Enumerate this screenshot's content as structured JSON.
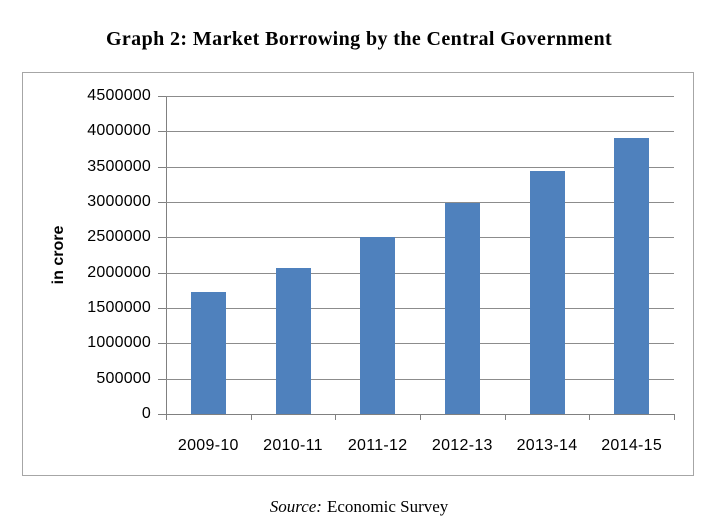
{
  "figure": {
    "title": "Graph 2: Market Borrowing by the Central Government",
    "source_prefix": "Source:",
    "source_text": "Economic Survey"
  },
  "chart_data": {
    "type": "bar",
    "title": "Graph 2: Market Borrowing by the Central Government",
    "categories": [
      "2009-10",
      "2010-11",
      "2011-12",
      "2012-13",
      "2013-14",
      "2014-15"
    ],
    "values": [
      1730000,
      2060000,
      2510000,
      2980000,
      3440000,
      3910000
    ],
    "xlabel": "",
    "ylabel": "in crore",
    "ylim": [
      0,
      4500000
    ],
    "ytick_interval": 500000,
    "ytick_labels": [
      "0",
      "500000",
      "1000000",
      "1500000",
      "2000000",
      "2500000",
      "3000000",
      "3500000",
      "4000000",
      "4500000"
    ],
    "grid": true,
    "legend": "none",
    "source": "Source: Economic Survey"
  },
  "colors": {
    "bar": "#4F81BD",
    "gridline": "#8C8C8C",
    "axis": "#808080",
    "chart_border": "#A6A6A6",
    "text": "#000000",
    "background": "#FFFFFF"
  }
}
